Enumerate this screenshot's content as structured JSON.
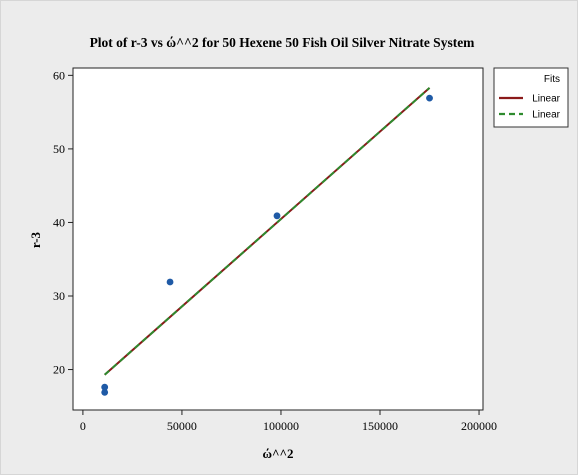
{
  "chart_data": {
    "type": "scatter",
    "title": "Plot of r-3 vs ώ^^2 for 50 Hexene 50 Fish Oil Silver Nitrate System",
    "xlabel": "ώ^^2",
    "ylabel": "r-3",
    "xlim": [
      -5000,
      202000
    ],
    "ylim": [
      14.5,
      61
    ],
    "x_ticks": [
      0,
      50000,
      100000,
      150000,
      200000
    ],
    "x_tick_labels": [
      "0",
      "50000",
      "100000",
      "150000",
      "200000"
    ],
    "y_ticks": [
      20,
      30,
      40,
      50,
      60
    ],
    "y_tick_labels": [
      "20",
      "30",
      "40",
      "50",
      "60"
    ],
    "grid": false,
    "legend_position": "top-right",
    "legend_title": "Fits",
    "points": {
      "color": "#1f5aa6",
      "x": [
        11000,
        11000,
        44000,
        98000,
        175000
      ],
      "y": [
        17.6,
        16.9,
        31.9,
        40.9,
        56.9
      ]
    },
    "fits": [
      {
        "name": "Linear",
        "color": "#8b1a1a",
        "dash": "solid",
        "x": [
          11000,
          175000
        ],
        "y": [
          19.3,
          58.3
        ]
      },
      {
        "name": "Linear",
        "color": "#2e8b2e",
        "dash": "dashed",
        "x": [
          11000,
          175000
        ],
        "y": [
          19.3,
          58.3
        ]
      }
    ]
  }
}
